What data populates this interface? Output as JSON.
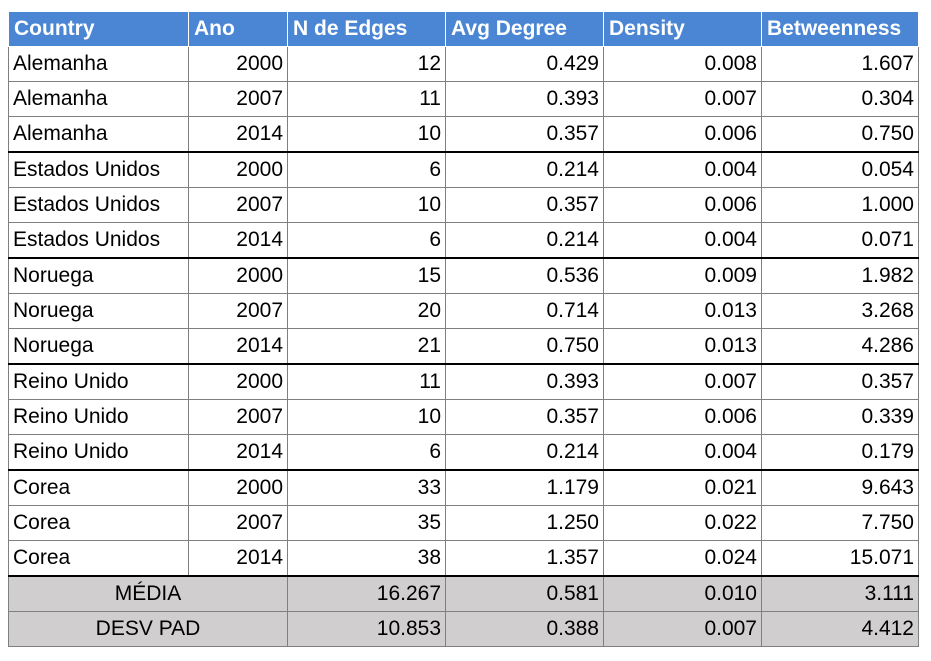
{
  "table": {
    "headers": [
      "Country",
      "Ano",
      "N de Edges",
      "Avg Degree",
      "Density",
      "Betweenness"
    ],
    "rows": [
      [
        "Alemanha",
        "2000",
        "12",
        "0.429",
        "0.008",
        "1.607"
      ],
      [
        "Alemanha",
        "2007",
        "11",
        "0.393",
        "0.007",
        "0.304"
      ],
      [
        "Alemanha",
        "2014",
        "10",
        "0.357",
        "0.006",
        "0.750"
      ],
      [
        "Estados Unidos",
        "2000",
        "6",
        "0.214",
        "0.004",
        "0.054"
      ],
      [
        "Estados Unidos",
        "2007",
        "10",
        "0.357",
        "0.006",
        "1.000"
      ],
      [
        "Estados Unidos",
        "2014",
        "6",
        "0.214",
        "0.004",
        "0.071"
      ],
      [
        "Noruega",
        "2000",
        "15",
        "0.536",
        "0.009",
        "1.982"
      ],
      [
        "Noruega",
        "2007",
        "20",
        "0.714",
        "0.013",
        "3.268"
      ],
      [
        "Noruega",
        "2014",
        "21",
        "0.750",
        "0.013",
        "4.286"
      ],
      [
        "Reino Unido",
        "2000",
        "11",
        "0.393",
        "0.007",
        "0.357"
      ],
      [
        "Reino Unido",
        "2007",
        "10",
        "0.357",
        "0.006",
        "0.339"
      ],
      [
        "Reino Unido",
        "2014",
        "6",
        "0.214",
        "0.004",
        "0.179"
      ],
      [
        "Corea",
        "2000",
        "33",
        "1.179",
        "0.021",
        "9.643"
      ],
      [
        "Corea",
        "2007",
        "35",
        "1.250",
        "0.022",
        "7.750"
      ],
      [
        "Corea",
        "2014",
        "38",
        "1.357",
        "0.024",
        "15.071"
      ]
    ],
    "summary": [
      {
        "label": "MÉDIA",
        "values": [
          "16.267",
          "0.581",
          "0.010",
          "3.111"
        ]
      },
      {
        "label": "DESV PAD",
        "values": [
          "10.853",
          "0.388",
          "0.007",
          "4.412"
        ]
      }
    ]
  },
  "colors": {
    "header_background": "#4a86d4",
    "header_text": "#ffffff",
    "summary_background": "#d0cece",
    "grid_line": "#7f7f7f"
  }
}
